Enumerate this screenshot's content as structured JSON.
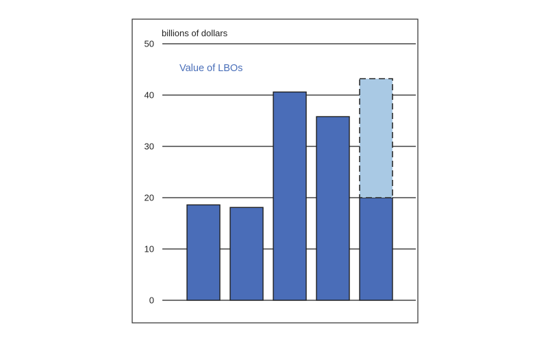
{
  "chart_data": {
    "type": "bar",
    "title": "",
    "ylabel": "billions of dollars",
    "xlabel": "",
    "ylim": [
      0,
      50
    ],
    "yticks": [
      0,
      10,
      20,
      30,
      40,
      50
    ],
    "grid": true,
    "legend_text": "Value of LBOs",
    "colors": {
      "bar": "#4a6db8",
      "estimate": "#a9c9e4",
      "legend": "#4a6fb9"
    },
    "values": [
      18.6,
      18.1,
      40.6,
      35.8,
      20.0
    ],
    "estimated_portion": {
      "index": 4,
      "from": 20.0,
      "to": 43.2
    }
  }
}
